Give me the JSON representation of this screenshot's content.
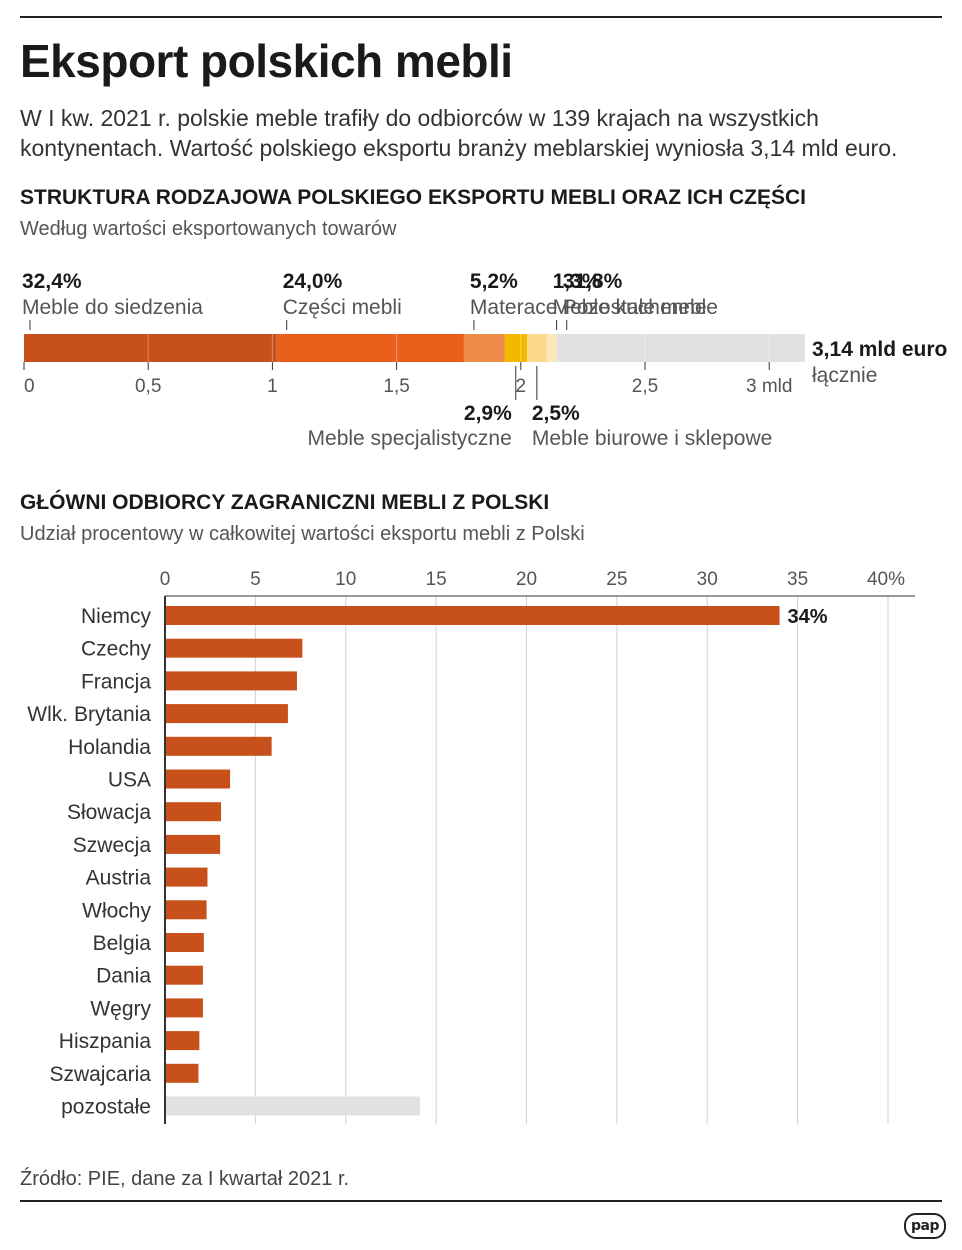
{
  "title": "Eksport polskich mebli",
  "lead": "W I kw. 2021 r. polskie meble trafiły do odbiorców w 139 krajach na wszystkich kontynentach. Wartość polskiego eksportu branży meblarskiej wyniosła 3,14 mld euro.",
  "colors": {
    "dark_orange": "#c8501a",
    "orange": "#e8601c",
    "light_orange": "#ee8a4a",
    "yellow": "#f5b800",
    "light_yellow": "#fad98a",
    "gray": "#dfe1e3",
    "text_gray": "#555555"
  },
  "chart_data": [
    {
      "type": "bar",
      "orientation": "horizontal-stacked",
      "title": "STRUKTURA RODZAJOWA POLSKIEGO EKSPORTU MEBLI ORAZ ICH CZĘŚCI",
      "subtitle": "Według wartości eksportowanych towarów",
      "unit": "mld euro",
      "total_value": 3.14,
      "total_label": "3,14 mld euro",
      "total_sublabel": "łącznie",
      "xlim": [
        0,
        3.14
      ],
      "ticks": [
        {
          "value": 0,
          "label": "0"
        },
        {
          "value": 0.5,
          "label": "0,5"
        },
        {
          "value": 1,
          "label": "1"
        },
        {
          "value": 1.5,
          "label": "1,5"
        },
        {
          "value": 2,
          "label": "2"
        },
        {
          "value": 2.5,
          "label": "2,5"
        },
        {
          "value": 3,
          "label": "3 mld"
        }
      ],
      "segments": [
        {
          "name": "Meble do siedzenia",
          "percent": 32.4,
          "value_label": "32,4%",
          "color": "#c8501a",
          "label_side": "top",
          "label_anchor": "start"
        },
        {
          "name": "Części mebli",
          "percent": 24.0,
          "value_label": "24,0%",
          "color": "#e8601c",
          "label_side": "top",
          "label_anchor": "start"
        },
        {
          "name": "Materace",
          "percent": 5.2,
          "value_label": "5,2%",
          "color": "#ee8a4a",
          "label_side": "top",
          "label_anchor": "start"
        },
        {
          "name": "Meble specjalistyczne",
          "percent": 2.9,
          "value_label": "2,9%",
          "color": "#f5b800",
          "label_side": "bottom",
          "label_anchor": "end"
        },
        {
          "name": "Meble biurowe i sklepowe",
          "percent": 2.5,
          "value_label": "2,5%",
          "color": "#fad98a",
          "label_side": "bottom",
          "label_anchor": "start"
        },
        {
          "name": "Meble kuchenne",
          "percent": 1.3,
          "value_label": "1,3%",
          "color": "#fbe6b8",
          "label_side": "top",
          "label_anchor": "start"
        },
        {
          "name": "Pozostałe meble",
          "percent": 31.8,
          "value_label": "31,8%",
          "color": "#dfe1e3",
          "label_side": "top",
          "label_anchor": "start"
        }
      ]
    },
    {
      "type": "bar",
      "orientation": "horizontal",
      "title": "GŁÓWNI ODBIORCY ZAGRANICZNI MEBLI Z POLSKI",
      "subtitle": "Udział procentowy w całkowitej wartości eksportu mebli z Polski",
      "xlim": [
        0,
        40
      ],
      "ticks": [
        {
          "value": 0,
          "label": "0"
        },
        {
          "value": 5,
          "label": "5"
        },
        {
          "value": 10,
          "label": "10"
        },
        {
          "value": 15,
          "label": "15"
        },
        {
          "value": 20,
          "label": "20"
        },
        {
          "value": 25,
          "label": "25"
        },
        {
          "value": 30,
          "label": "30"
        },
        {
          "value": 35,
          "label": "35"
        },
        {
          "value": 40,
          "label": "40%"
        }
      ],
      "categories": [
        "Niemcy",
        "Czechy",
        "Francja",
        "Wlk. Brytania",
        "Holandia",
        "USA",
        "Słowacja",
        "Szwecja",
        "Austria",
        "Włochy",
        "Belgia",
        "Dania",
        "Węgry",
        "Hiszpania",
        "Szwajcaria",
        "pozostałe"
      ],
      "values": [
        34,
        7.6,
        7.3,
        6.8,
        5.9,
        3.6,
        3.1,
        3.05,
        2.35,
        2.3,
        2.15,
        2.1,
        2.1,
        1.9,
        1.85,
        14.1
      ],
      "data_labels": [
        "34%",
        "",
        "",
        "",
        "",
        "",
        "",
        "",
        "",
        "",
        "",
        "",
        "",
        "",
        "",
        ""
      ],
      "colors": [
        "#c8501a",
        "#c8501a",
        "#c8501a",
        "#c8501a",
        "#c8501a",
        "#c8501a",
        "#c8501a",
        "#c8501a",
        "#c8501a",
        "#c8501a",
        "#c8501a",
        "#c8501a",
        "#c8501a",
        "#c8501a",
        "#c8501a",
        "#dfe1e3"
      ]
    }
  ],
  "source": "Źródło: PIE, dane za I kwartał 2021 r.",
  "logo_text": "pap"
}
